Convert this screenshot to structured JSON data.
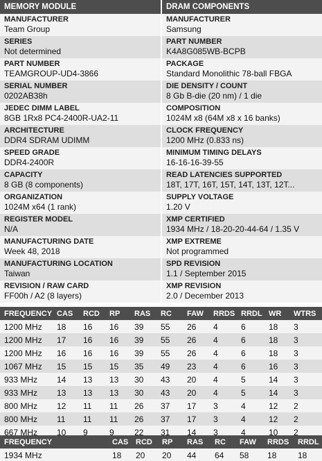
{
  "memory_module": {
    "title": "MEMORY MODULE",
    "fields": [
      {
        "label": "MANUFACTURER",
        "value": "Team Group"
      },
      {
        "label": "SERIES",
        "value": "Not determined"
      },
      {
        "label": "PART NUMBER",
        "value": "TEAMGROUP-UD4-3866"
      },
      {
        "label": "SERIAL NUMBER",
        "value": "0202AB38h"
      },
      {
        "label": "JEDEC DIMM LABEL",
        "value": "8GB 1Rx8 PC4-2400R-UA2-11"
      },
      {
        "label": "ARCHITECTURE",
        "value": "DDR4 SDRAM UDIMM"
      },
      {
        "label": "SPEED GRADE",
        "value": "DDR4-2400R"
      },
      {
        "label": "CAPACITY",
        "value": "8 GB (8 components)"
      },
      {
        "label": "ORGANIZATION",
        "value": "1024M x64 (1 rank)"
      },
      {
        "label": "REGISTER MODEL",
        "value": "N/A"
      },
      {
        "label": "MANUFACTURING DATE",
        "value": "Week 48, 2018"
      },
      {
        "label": "MANUFACTURING LOCATION",
        "value": "Taiwan"
      },
      {
        "label": "REVISION / RAW CARD",
        "value": "FF00h / A2 (8 layers)"
      }
    ]
  },
  "dram_components": {
    "title": "DRAM COMPONENTS",
    "fields": [
      {
        "label": "MANUFACTURER",
        "value": "Samsung"
      },
      {
        "label": "PART NUMBER",
        "value": "K4A8G085WB-BCPB"
      },
      {
        "label": "PACKAGE",
        "value": "Standard Monolithic 78-ball FBGA"
      },
      {
        "label": "DIE DENSITY / COUNT",
        "value": "8 Gb B-die (20 nm) / 1 die"
      },
      {
        "label": "COMPOSITION",
        "value": "1024M x8 (64M x8 x 16 banks)"
      },
      {
        "label": "CLOCK FREQUENCY",
        "value": "1200 MHz (0.833 ns)"
      },
      {
        "label": "MINIMUM TIMING DELAYS",
        "value": "16-16-16-39-55"
      },
      {
        "label": "READ LATENCIES SUPPORTED",
        "value": "18T, 17T, 16T, 15T, 14T, 13T, 12T..."
      },
      {
        "label": "SUPPLY VOLTAGE",
        "value": "1.20 V"
      },
      {
        "label": "XMP CERTIFIED",
        "value": "1934 MHz / 18-20-20-44-64 / 1.35 V"
      },
      {
        "label": "XMP EXTREME",
        "value": "Not programmed"
      },
      {
        "label": "SPD REVISION",
        "value": "1.1 / September 2015"
      },
      {
        "label": "XMP REVISION",
        "value": "2.0 / December 2013"
      }
    ]
  },
  "timing_table": {
    "headers": [
      "FREQUENCY",
      "CAS",
      "RCD",
      "RP",
      "RAS",
      "RC",
      "FAW",
      "RRDS",
      "RRDL",
      "WR",
      "WTRS"
    ],
    "rows": [
      [
        "1200 MHz",
        "18",
        "16",
        "16",
        "39",
        "55",
        "26",
        "4",
        "6",
        "18",
        "3"
      ],
      [
        "1200 MHz",
        "17",
        "16",
        "16",
        "39",
        "55",
        "26",
        "4",
        "6",
        "18",
        "3"
      ],
      [
        "1200 MHz",
        "16",
        "16",
        "16",
        "39",
        "55",
        "26",
        "4",
        "6",
        "18",
        "3"
      ],
      [
        "1067 MHz",
        "15",
        "15",
        "15",
        "35",
        "49",
        "23",
        "4",
        "6",
        "16",
        "3"
      ],
      [
        "933 MHz",
        "14",
        "13",
        "13",
        "30",
        "43",
        "20",
        "4",
        "5",
        "14",
        "3"
      ],
      [
        "933 MHz",
        "13",
        "13",
        "13",
        "30",
        "43",
        "20",
        "4",
        "5",
        "14",
        "3"
      ],
      [
        "800 MHz",
        "12",
        "11",
        "11",
        "26",
        "37",
        "17",
        "3",
        "4",
        "12",
        "2"
      ],
      [
        "800 MHz",
        "11",
        "11",
        "11",
        "26",
        "37",
        "17",
        "3",
        "4",
        "12",
        "2"
      ],
      [
        "667 MHz",
        "10",
        "9",
        "9",
        "22",
        "31",
        "14",
        "3",
        "4",
        "10",
        "2"
      ]
    ]
  },
  "xmp_table": {
    "headers": [
      "FREQUENCY",
      "CAS",
      "RCD",
      "RP",
      "RAS",
      "RC",
      "FAW",
      "RRDS",
      "RRDL"
    ],
    "rows": [
      [
        "1934 MHz",
        "18",
        "20",
        "20",
        "44",
        "64",
        "58",
        "18",
        "18"
      ]
    ]
  }
}
